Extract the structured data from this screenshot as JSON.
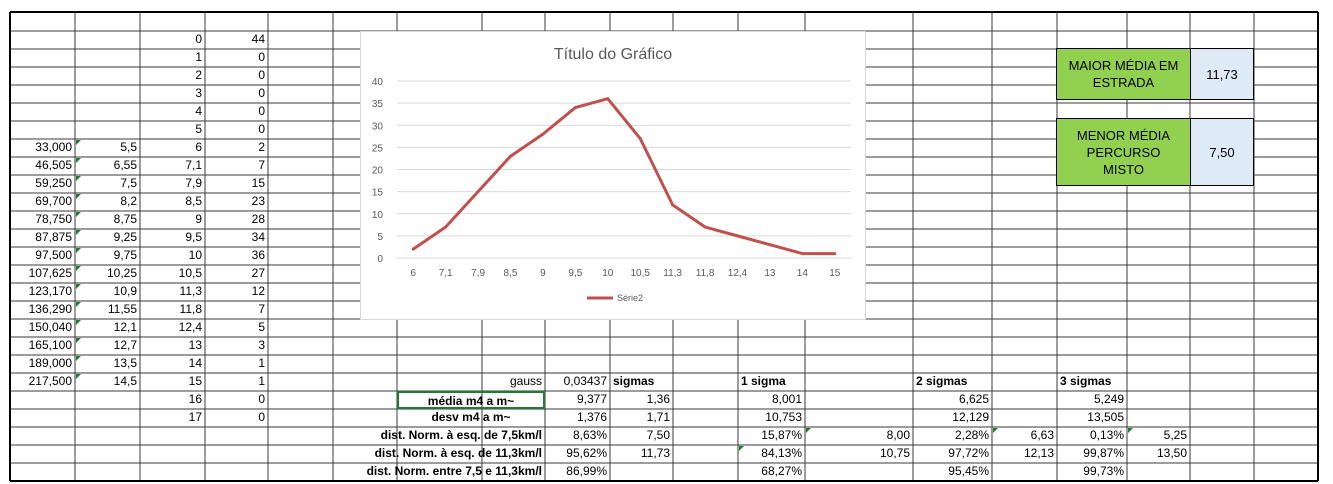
{
  "colA": [
    {
      "row": 7,
      "value": "33,000"
    },
    {
      "row": 8,
      "value": "46,505"
    },
    {
      "row": 9,
      "value": "59,250"
    },
    {
      "row": 10,
      "value": "69,700"
    },
    {
      "row": 11,
      "value": "78,750"
    },
    {
      "row": 12,
      "value": "87,875"
    },
    {
      "row": 13,
      "value": "97,500"
    },
    {
      "row": 14,
      "value": "107,625"
    },
    {
      "row": 15,
      "value": "123,170"
    },
    {
      "row": 16,
      "value": "136,290"
    },
    {
      "row": 17,
      "value": "150,040"
    },
    {
      "row": 18,
      "value": "165,100"
    },
    {
      "row": 19,
      "value": "189,000"
    },
    {
      "row": 20,
      "value": "217,500"
    }
  ],
  "colB": [
    {
      "row": 7,
      "value": "5,5"
    },
    {
      "row": 8,
      "value": "6,55"
    },
    {
      "row": 9,
      "value": "7,5"
    },
    {
      "row": 10,
      "value": "8,2"
    },
    {
      "row": 11,
      "value": "8,75"
    },
    {
      "row": 12,
      "value": "9,25"
    },
    {
      "row": 13,
      "value": "9,75"
    },
    {
      "row": 14,
      "value": "10,25"
    },
    {
      "row": 15,
      "value": "10,9"
    },
    {
      "row": 16,
      "value": "11,55"
    },
    {
      "row": 17,
      "value": "12,1"
    },
    {
      "row": 18,
      "value": "12,7"
    },
    {
      "row": 19,
      "value": "13,5"
    },
    {
      "row": 20,
      "value": "14,5"
    }
  ],
  "colC": [
    "0",
    "1",
    "2",
    "3",
    "4",
    "5",
    "6",
    "7,1",
    "7,9",
    "8,5",
    "9",
    "9,5",
    "10",
    "10,5",
    "11,3",
    "11,8",
    "12,4",
    "13",
    "14",
    "15",
    "16",
    "17"
  ],
  "colD": [
    "44",
    "0",
    "0",
    "0",
    "0",
    "0",
    "2",
    "7",
    "15",
    "23",
    "28",
    "34",
    "36",
    "27",
    "12",
    "7",
    "5",
    "3",
    "1",
    "1",
    "0",
    "0"
  ],
  "stats": {
    "gauss_label": "gauss",
    "gauss_value": "0,03437",
    "sigmas_label": "sigmas",
    "sigma1_label": "1 sigma",
    "sigma2_label": "2 sigmas",
    "sigma3_label": "3 sigmas",
    "media_label": "média m4 a m~",
    "media_value": "9,377",
    "media_sigmas": "1,36",
    "media_s1": "8,001",
    "media_s2": "6,625",
    "media_s3": "5,249",
    "desv_label": "desv m4 a m~",
    "desv_value": "1,376",
    "desv_sigmas": "1,71",
    "desv_s1": "10,753",
    "desv_s2": "12,129",
    "desv_s3": "13,505",
    "d75_label": "dist. Norm. à esq. de 7,5km/l",
    "d75_value": "8,63%",
    "d75_sigmas": "7,50",
    "d75_s1": "15,87%",
    "d75_s1b": "8,00",
    "d75_s2": "2,28%",
    "d75_s2b": "6,63",
    "d75_s3": "0,13%",
    "d75_s3b": "5,25",
    "d113_label": "dist. Norm. à esq. de 11,3km/l",
    "d113_value": "95,62%",
    "d113_sigmas": "11,73",
    "d113_s1": "84,13%",
    "d113_s1b": "10,75",
    "d113_s2": "97,72%",
    "d113_s2b": "12,13",
    "d113_s3": "99,87%",
    "d113_s3b": "13,50",
    "dbet_label": "dist. Norm. entre 7,5 e 11,3km/l",
    "dbet_value": "86,99%",
    "dbet_s1": "68,27%",
    "dbet_s2": "95,45%",
    "dbet_s3": "99,73%"
  },
  "boxes": {
    "maior_label": "MAIOR MÉDIA EM ESTRADA",
    "maior_value": "11,73",
    "menor_label": "MENOR MÉDIA PERCURSO MISTO",
    "menor_value": "7,50"
  },
  "colors": {
    "grid": "#bfbfbf",
    "green": "#92d050",
    "blue": "#deebf7",
    "series": "#c0504d"
  },
  "chart_data": {
    "type": "line",
    "title": "Título do Gráfico",
    "categories": [
      "6",
      "7,1",
      "7,9",
      "8,5",
      "9",
      "9,5",
      "10",
      "10,5",
      "11,3",
      "11,8",
      "12,4",
      "13",
      "14",
      "15"
    ],
    "series": [
      {
        "name": "Série2",
        "values": [
          2,
          7,
          15,
          23,
          28,
          34,
          36,
          27,
          12,
          7,
          5,
          3,
          1,
          1
        ]
      }
    ],
    "yticks": [
      "0",
      "5",
      "10",
      "15",
      "20",
      "25",
      "30",
      "35",
      "40"
    ],
    "ylim": [
      0,
      40
    ],
    "grid": true,
    "legend": "bottom"
  }
}
